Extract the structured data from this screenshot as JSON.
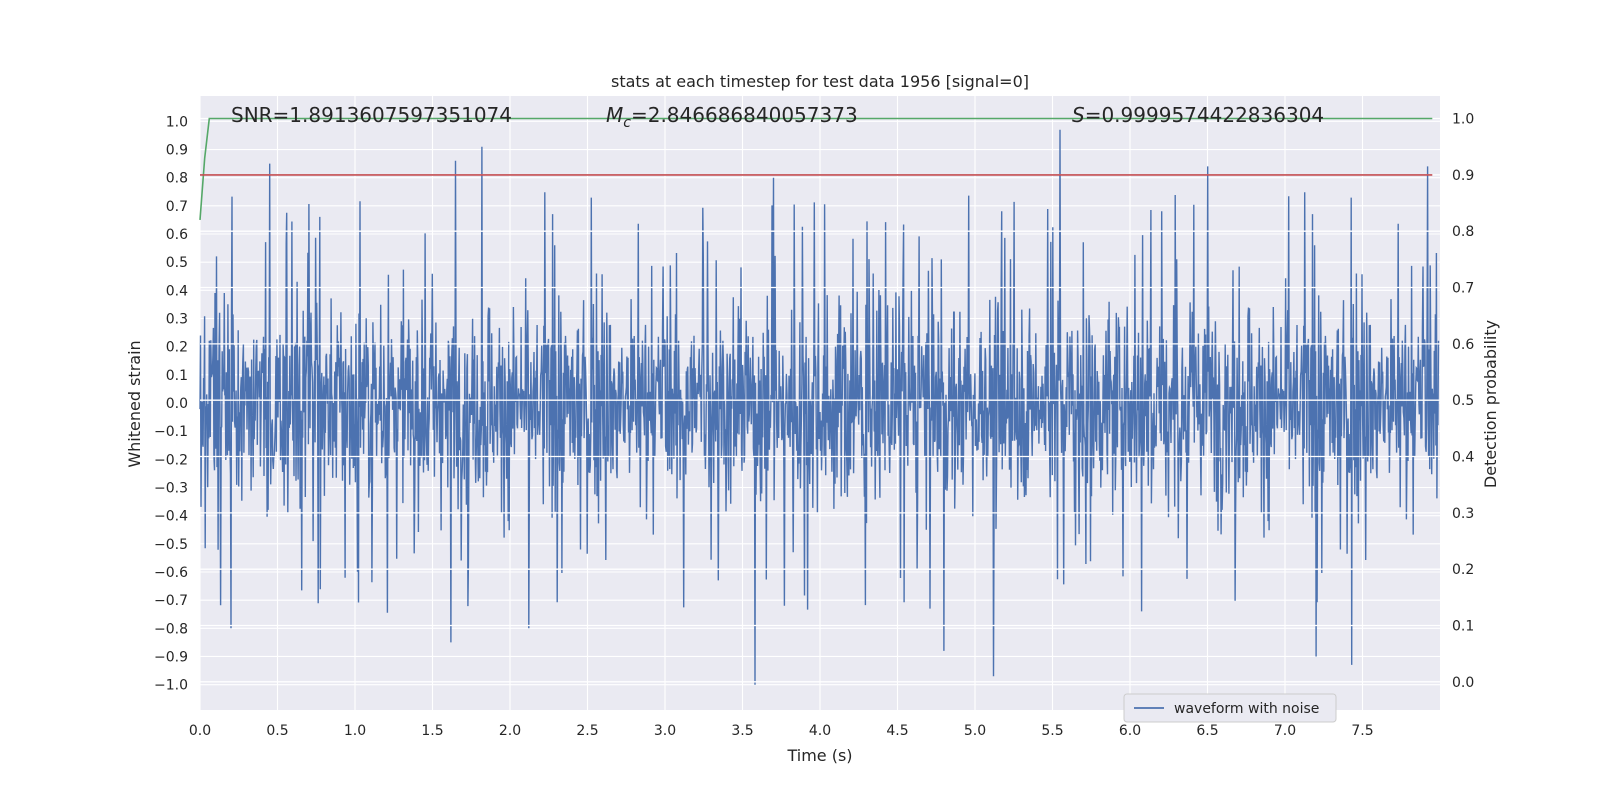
{
  "chart_data": {
    "type": "line",
    "title": "stats at each timestep for test data 1956 [signal=0]",
    "xlabel": "Time (s)",
    "ylabel_left": "Whitened strain",
    "ylabel_right": "Detection probability",
    "xlim": [
      0.0,
      8.0
    ],
    "ylim_left": [
      -1.09,
      1.09
    ],
    "ylim_right": [
      -0.05,
      1.04
    ],
    "x_ticks": [
      "0.0",
      "0.5",
      "1.0",
      "1.5",
      "2.0",
      "2.5",
      "3.0",
      "3.5",
      "4.0",
      "4.5",
      "5.0",
      "5.5",
      "6.0",
      "6.5",
      "7.0",
      "7.5"
    ],
    "y_left_ticks": [
      "−1.0",
      "−0.9",
      "−0.8",
      "−0.7",
      "−0.6",
      "−0.5",
      "−0.4",
      "−0.3",
      "−0.2",
      "−0.1",
      "0.0",
      "0.1",
      "0.2",
      "0.3",
      "0.4",
      "0.5",
      "0.6",
      "0.7",
      "0.8",
      "0.9",
      "1.0"
    ],
    "y_right_ticks": [
      "0.0",
      "0.1",
      "0.2",
      "0.3",
      "0.4",
      "0.5",
      "0.6",
      "0.7",
      "0.8",
      "0.9",
      "1.0"
    ],
    "annotations": {
      "snr_label": "SNR=1.8913607597351074",
      "mc_symbol": "M",
      "mc_subscript": "c",
      "mc_value": "=2.846686840057373",
      "s_symbol": "S",
      "s_value": "=0.9999574422836304"
    },
    "legend": {
      "label": "waveform with noise",
      "placement": "lower-right"
    },
    "grid": true,
    "series": [
      {
        "name": "waveform with noise",
        "axis": "left",
        "color": "#4c72b0",
        "kind": "noise",
        "bulk_amplitude": 0.45,
        "peaks": [
          {
            "x": 0.45,
            "y": 0.85
          },
          {
            "x": 1.65,
            "y": 0.86
          },
          {
            "x": 1.82,
            "y": 0.91
          },
          {
            "x": 3.58,
            "y": -1.0
          },
          {
            "x": 5.12,
            "y": -0.97
          },
          {
            "x": 5.55,
            "y": 0.97
          },
          {
            "x": 6.5,
            "y": 0.84
          },
          {
            "x": 7.2,
            "y": -0.9
          },
          {
            "x": 7.43,
            "y": -0.93
          },
          {
            "x": 7.92,
            "y": 0.84
          },
          {
            "x": 1.62,
            "y": -0.85
          },
          {
            "x": 4.8,
            "y": -0.88
          },
          {
            "x": 0.2,
            "y": -0.8
          },
          {
            "x": 2.12,
            "y": -0.8
          },
          {
            "x": 3.7,
            "y": 0.8
          }
        ]
      },
      {
        "name": "",
        "axis": "right",
        "color": "#55a868",
        "x": [
          0.0,
          0.03,
          0.06,
          0.1,
          7.95
        ],
        "y": [
          0.82,
          0.93,
          1.0,
          1.0,
          1.0
        ]
      },
      {
        "name": "",
        "axis": "right",
        "color": "#c44e52",
        "x": [
          0.0,
          7.95
        ],
        "y": [
          0.9,
          0.9
        ]
      }
    ],
    "background": "#eaeaf2",
    "grid_color": "#ffffff"
  }
}
